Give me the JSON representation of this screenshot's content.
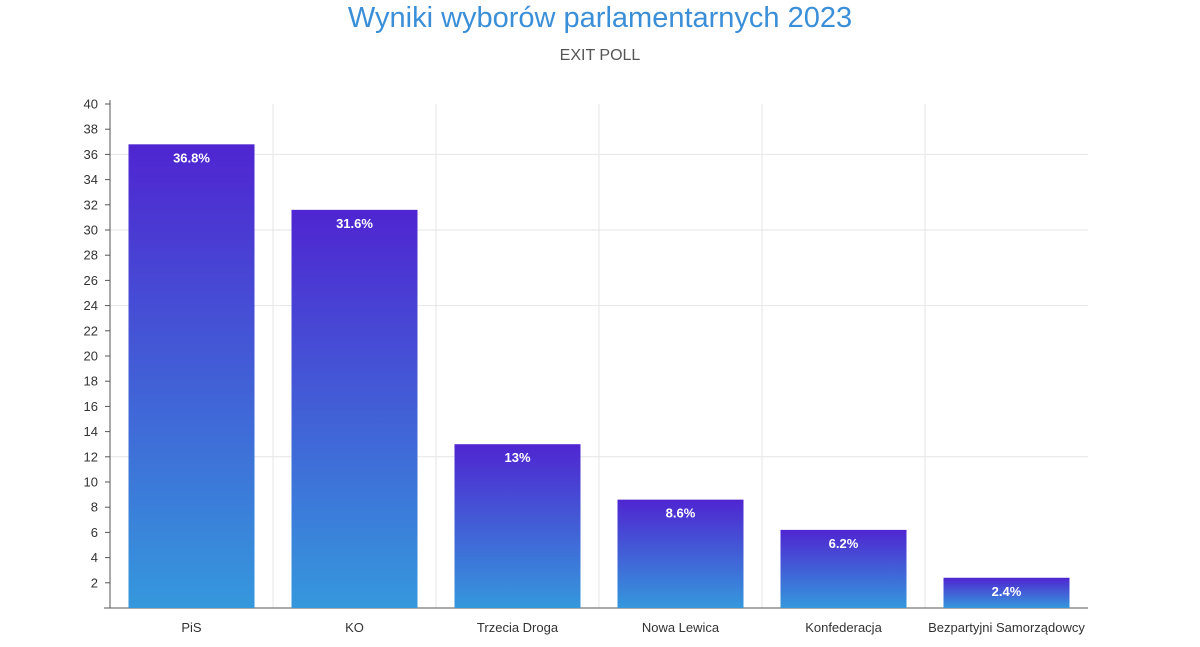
{
  "chart_data": {
    "type": "bar",
    "title": "Wyniki wyborów parlamentarnych 2023",
    "subtitle": "EXIT POLL",
    "xlabel": "",
    "ylabel": "",
    "categories": [
      "PiS",
      "KO",
      "Trzecia Droga",
      "Nowa Lewica",
      "Konfederacja",
      "Bezpartyjni Samorządowcy"
    ],
    "values": [
      36.8,
      31.6,
      13,
      8.6,
      6.2,
      2.4
    ],
    "data_labels": [
      "36.8%",
      "31.6%",
      "13%",
      "8.6%",
      "6.2%",
      "2.4%"
    ],
    "y_ticks": [
      "2",
      "4",
      "6",
      "8",
      "10",
      "12",
      "14",
      "16",
      "18",
      "20",
      "22",
      "24",
      "26",
      "28",
      "30",
      "32",
      "34",
      "36",
      "38",
      "40"
    ],
    "ylim": [
      0,
      40
    ],
    "grid": true,
    "legend": "none",
    "colors": {
      "bar_top": "#4f25d1",
      "bar_bottom": "#3598dc",
      "title": "#3a8fd8",
      "grid": "#e6e6e6"
    }
  }
}
